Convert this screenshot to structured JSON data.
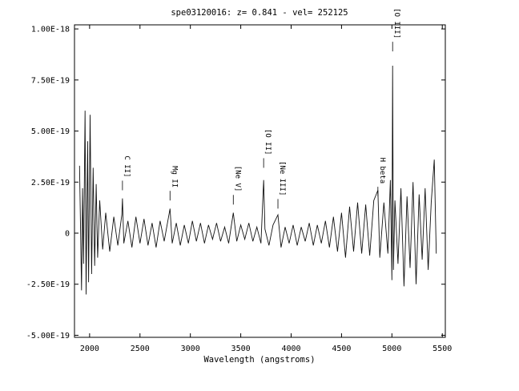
{
  "chart_data": {
    "type": "line",
    "title": "spe03120016: z= 0.841 - vel= 252125",
    "xlabel": "Wavelength (angstroms)",
    "ylabel": "",
    "xlim": [
      1850,
      5530
    ],
    "ylim": [
      -5.1e-19,
      1.02e-18
    ],
    "x_ticks": [
      {
        "value": 2000,
        "label": "2000"
      },
      {
        "value": 2500,
        "label": "2500"
      },
      {
        "value": 3000,
        "label": "3000"
      },
      {
        "value": 3500,
        "label": "3500"
      },
      {
        "value": 4000,
        "label": "4000"
      },
      {
        "value": 4500,
        "label": "4500"
      },
      {
        "value": 5000,
        "label": "5000"
      },
      {
        "value": 5500,
        "label": "5500"
      }
    ],
    "y_ticks": [
      {
        "value": 1e-18,
        "label": "1.00E-18"
      },
      {
        "value": 7.5e-19,
        "label": "7.50E-19"
      },
      {
        "value": 5e-19,
        "label": "5.00E-19"
      },
      {
        "value": 2.5e-19,
        "label": "2.50E-19"
      },
      {
        "value": 0,
        "label": "0"
      },
      {
        "value": -2.5e-19,
        "label": "-2.50E-19"
      },
      {
        "value": -5e-19,
        "label": "-5.00E-19"
      }
    ],
    "grid": false,
    "line_labels": [
      {
        "label": "C II]",
        "x": 2326,
        "y": 2.1e-19
      },
      {
        "label": "Mg II",
        "x": 2798,
        "y": 1.6e-19
      },
      {
        "label": "[Ne V]",
        "x": 3426,
        "y": 1.4e-19
      },
      {
        "label": "[O II]",
        "x": 3727,
        "y": 3.2e-19
      },
      {
        "label": "[Ne III]",
        "x": 3869,
        "y": 1.2e-19
      },
      {
        "label": "H beta",
        "x": 4861,
        "y": 1.8e-19
      },
      {
        "label": "[O III]",
        "x": 5007,
        "y": 8.9e-19
      }
    ],
    "series": [
      {
        "values_unit": "flux",
        "x": [
          1900,
          1920,
          1930,
          1940,
          1955,
          1965,
          1980,
          1990,
          2005,
          2020,
          2035,
          2050,
          2065,
          2080,
          2100,
          2130,
          2160,
          2200,
          2240,
          2280,
          2320,
          2326,
          2340,
          2380,
          2420,
          2460,
          2500,
          2540,
          2580,
          2620,
          2660,
          2700,
          2740,
          2780,
          2798,
          2820,
          2860,
          2900,
          2940,
          2980,
          3020,
          3060,
          3100,
          3140,
          3180,
          3220,
          3260,
          3300,
          3340,
          3380,
          3426,
          3460,
          3500,
          3540,
          3580,
          3620,
          3660,
          3700,
          3727,
          3740,
          3780,
          3820,
          3869,
          3900,
          3940,
          3980,
          4020,
          4060,
          4100,
          4140,
          4180,
          4220,
          4260,
          4300,
          4340,
          4380,
          4420,
          4460,
          4500,
          4540,
          4580,
          4620,
          4660,
          4700,
          4740,
          4780,
          4820,
          4861,
          4880,
          4920,
          4960,
          4985,
          5000,
          5007,
          5015,
          5030,
          5060,
          5090,
          5120,
          5150,
          5180,
          5210,
          5240,
          5270,
          5300,
          5330,
          5360,
          5390,
          5420,
          5440
        ],
        "values": [
          3.3e-19,
          -2.8e-19,
          2.2e-19,
          -1.5e-19,
          6e-19,
          -3e-19,
          4.5e-19,
          -2.4e-19,
          5.8e-19,
          -2e-19,
          3.2e-19,
          -1.6e-19,
          2.4e-19,
          -1.2e-19,
          1.6e-19,
          -8e-20,
          1e-19,
          -9e-20,
          8e-20,
          -6e-20,
          9e-20,
          1.7e-19,
          -5e-20,
          6e-20,
          -7e-20,
          8e-20,
          -5e-20,
          7e-20,
          -6e-20,
          5e-20,
          -7e-20,
          6e-20,
          -4e-20,
          7e-20,
          1.2e-19,
          -5e-20,
          5e-20,
          -6e-20,
          4e-20,
          -5e-20,
          6e-20,
          -4e-20,
          5e-20,
          -5e-20,
          4e-20,
          -3e-20,
          5e-20,
          -4e-20,
          3e-20,
          -5e-20,
          1e-19,
          -4e-20,
          4e-20,
          -3e-20,
          5e-20,
          -4e-20,
          3e-20,
          -5e-20,
          2.6e-19,
          2e-20,
          -6e-20,
          4e-20,
          9e-20,
          -7e-20,
          3e-20,
          -5e-20,
          4e-20,
          -6e-20,
          3e-20,
          -4e-20,
          5e-20,
          -6e-20,
          4e-20,
          -5e-20,
          6e-20,
          -7e-20,
          8e-20,
          -9e-20,
          1e-19,
          -1.2e-19,
          1.3e-19,
          -9e-20,
          1.5e-19,
          -1e-19,
          1.4e-19,
          -1.1e-19,
          1.6e-19,
          2.1e-19,
          -1.2e-19,
          1.5e-19,
          -1e-19,
          2.6e-19,
          -2.3e-19,
          8.2e-19,
          -1.8e-19,
          1.6e-19,
          -1.5e-19,
          2.2e-19,
          -2.6e-19,
          1.8e-19,
          -1.7e-19,
          2.5e-19,
          -2.5e-19,
          1.9e-19,
          -1.3e-19,
          2.2e-19,
          -1.8e-19,
          1.5e-19,
          3.6e-19,
          -1e-19
        ]
      }
    ]
  }
}
